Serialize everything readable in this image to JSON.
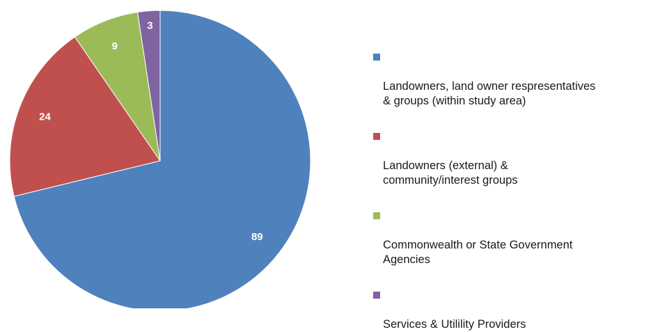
{
  "chart_data": {
    "type": "pie",
    "title": "",
    "categories": [
      "Landowners, land owner respresentatives & groups (within study area)",
      "Landowners (external) & community/interest groups",
      "Commonwealth or State Government Agencies",
      "Services & Utilility Providers"
    ],
    "values": [
      89,
      24,
      9,
      3
    ],
    "data_labels": [
      "89",
      "24",
      "9",
      "3"
    ],
    "colors": [
      "#4F81BD",
      "#C0504D",
      "#9BBB59",
      "#8064A2"
    ],
    "legend_position": "right",
    "start_angle": "12 o'clock",
    "direction": "clockwise"
  },
  "legend": {
    "items": [
      {
        "label": "Landowners, land owner respresentatives\n& groups (within study area)",
        "color": "#4F81BD"
      },
      {
        "label": "Landowners (external) &\ncommunity/interest groups",
        "color": "#C0504D"
      },
      {
        "label": "Commonwealth or State Government\nAgencies",
        "color": "#9BBB59"
      },
      {
        "label": "Services & Utilility Providers",
        "color": "#8064A2"
      }
    ]
  }
}
